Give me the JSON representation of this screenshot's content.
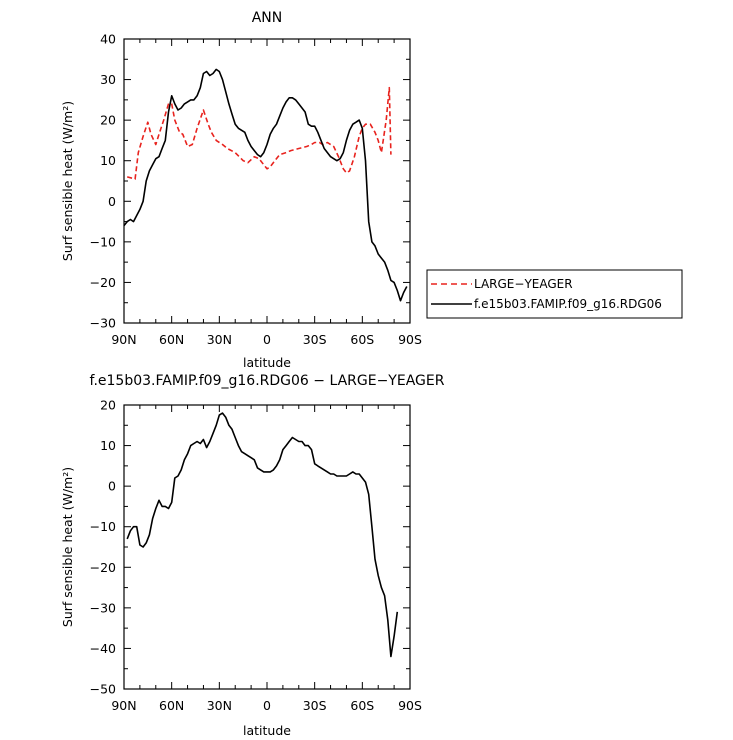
{
  "chart_data": [
    {
      "type": "line",
      "title": "ANN",
      "xlabel": "latitude",
      "ylabel": "Surf sensible heat (W/m²)",
      "xlim": [
        90,
        -90
      ],
      "ylim": [
        -30,
        40
      ],
      "x_ticks": [
        90,
        60,
        30,
        0,
        -30,
        -60,
        -90
      ],
      "x_tick_labels": [
        "90N",
        "60N",
        "30N",
        "0",
        "30S",
        "60S",
        "90S"
      ],
      "y_ticks": [
        -30,
        -20,
        -10,
        0,
        10,
        20,
        30,
        40
      ],
      "y_tick_labels": [
        "−30",
        "−20",
        "−10",
        "0",
        "10",
        "20",
        "30",
        "40"
      ],
      "legend_position": "right of plot, bottom",
      "series": [
        {
          "name": "LARGE−YEAGER",
          "color": "#e8231e",
          "dash": "dashed",
          "x": [
            88,
            83,
            81,
            78,
            75,
            73,
            70,
            68,
            65,
            62,
            60,
            58,
            55,
            53,
            50,
            47,
            44,
            40,
            37,
            35,
            32,
            28,
            25,
            20,
            15,
            12,
            8,
            5,
            2,
            0,
            -2,
            -5,
            -8,
            -12,
            -15,
            -20,
            -25,
            -28,
            -30,
            -33,
            -35,
            -38,
            -42,
            -45,
            -48,
            -50,
            -52,
            -55,
            -58,
            -60,
            -62,
            -65,
            -68,
            -70,
            -72,
            -75,
            -77,
            -78
          ],
          "y": [
            6,
            5.5,
            12,
            16,
            19.5,
            16.5,
            14,
            16.5,
            20,
            24,
            24,
            20,
            17,
            16.5,
            13.5,
            14,
            18,
            22.5,
            19,
            17,
            15,
            14,
            13,
            12,
            10,
            9.5,
            11,
            10.5,
            9,
            8,
            8.5,
            10,
            11.5,
            12,
            12.5,
            13,
            13.5,
            14,
            14.5,
            14.5,
            14,
            14.5,
            13.5,
            11,
            8,
            7,
            7.5,
            11,
            16,
            18,
            19,
            19,
            17,
            15,
            12,
            20,
            28,
            11.5
          ]
        },
        {
          "name": "f.e15b03.FAMIP.f09_g16.RDG06",
          "color": "#000000",
          "dash": "solid",
          "x": [
            90,
            88,
            86,
            84,
            82,
            80,
            78,
            76,
            74,
            72,
            70,
            68,
            66,
            64,
            62,
            60,
            58,
            56,
            54,
            52,
            50,
            48,
            46,
            44,
            42,
            40,
            38,
            36,
            34,
            32,
            30,
            28,
            26,
            24,
            22,
            20,
            18,
            16,
            14,
            12,
            10,
            8,
            6,
            4,
            2,
            0,
            -2,
            -4,
            -6,
            -8,
            -10,
            -12,
            -14,
            -16,
            -18,
            -20,
            -22,
            -24,
            -26,
            -28,
            -30,
            -32,
            -34,
            -36,
            -38,
            -40,
            -42,
            -44,
            -46,
            -48,
            -50,
            -52,
            -54,
            -56,
            -58,
            -60,
            -62,
            -64,
            -66,
            -68,
            -70,
            -72,
            -74,
            -76,
            -78,
            -80,
            -82,
            -84,
            -86,
            -88
          ],
          "y": [
            -6,
            -5,
            -4.5,
            -5,
            -3.5,
            -2,
            0,
            5,
            7.5,
            9,
            10.5,
            11,
            13,
            15,
            22,
            26,
            24,
            22.5,
            23,
            24,
            24.5,
            25,
            25,
            26,
            28,
            31.5,
            32,
            31,
            31.5,
            32.5,
            32,
            30,
            27,
            24,
            21.5,
            19,
            18,
            17.5,
            17,
            15,
            13.5,
            12.5,
            11.5,
            11,
            12,
            14,
            16.5,
            18,
            19,
            21,
            23,
            24.5,
            25.5,
            25.5,
            25,
            24,
            23,
            22,
            19,
            18.5,
            18.5,
            17,
            15,
            13,
            12,
            11,
            10.5,
            10,
            10.5,
            12,
            15,
            17.5,
            19,
            19.5,
            20,
            18,
            10,
            -5,
            -10,
            -11,
            -13,
            -14,
            -15,
            -17,
            -19.5,
            -20,
            -22,
            -24.5,
            -22.5,
            -21
          ]
        }
      ]
    },
    {
      "type": "line",
      "title": "f.e15b03.FAMIP.f09_g16.RDG06 − LARGE−YEAGER",
      "xlabel": "latitude",
      "ylabel": "Surf sensible heat (W/m²)",
      "xlim": [
        90,
        -90
      ],
      "ylim": [
        -50,
        20
      ],
      "x_ticks": [
        90,
        60,
        30,
        0,
        -30,
        -60,
        -90
      ],
      "x_tick_labels": [
        "90N",
        "60N",
        "30N",
        "0",
        "30S",
        "60S",
        "90S"
      ],
      "y_ticks": [
        -50,
        -40,
        -30,
        -20,
        -10,
        0,
        10,
        20
      ],
      "y_tick_labels": [
        "−50",
        "−40",
        "−30",
        "−20",
        "−10",
        "0",
        "10",
        "20"
      ],
      "series": [
        {
          "color": "#000000",
          "dash": "solid",
          "x": [
            88,
            86,
            84,
            82,
            80,
            78,
            76,
            74,
            72,
            70,
            68,
            66,
            64,
            62,
            60,
            58,
            56,
            54,
            52,
            50,
            48,
            46,
            44,
            42,
            40,
            38,
            36,
            34,
            32,
            30,
            28,
            26,
            24,
            22,
            20,
            18,
            16,
            14,
            12,
            10,
            8,
            6,
            4,
            2,
            0,
            -2,
            -4,
            -6,
            -8,
            -10,
            -12,
            -14,
            -16,
            -18,
            -20,
            -22,
            -24,
            -26,
            -28,
            -30,
            -32,
            -34,
            -36,
            -38,
            -40,
            -42,
            -44,
            -46,
            -48,
            -50,
            -52,
            -54,
            -56,
            -58,
            -60,
            -62,
            -64,
            -66,
            -68,
            -70,
            -72,
            -74,
            -76,
            -78,
            -80,
            -82
          ],
          "y": [
            -13,
            -11,
            -10,
            -10,
            -14.5,
            -15,
            -14,
            -12,
            -8,
            -5.5,
            -3.5,
            -5,
            -5,
            -5.5,
            -4,
            2,
            2.5,
            4,
            6.5,
            8,
            10,
            10.5,
            11,
            10.5,
            11.5,
            9.5,
            11,
            13,
            15,
            17.5,
            18,
            17,
            15,
            14,
            12,
            10,
            8.5,
            8,
            7.5,
            7,
            6.5,
            4.5,
            4,
            3.5,
            3.5,
            3.5,
            4,
            5,
            6.5,
            9,
            10,
            11,
            12,
            11.5,
            11,
            11,
            10,
            10,
            9,
            5.5,
            5,
            4.5,
            4,
            3.5,
            3,
            3,
            2.5,
            2.5,
            2.5,
            2.5,
            3,
            3.5,
            3,
            3,
            2,
            1,
            -2,
            -10,
            -18,
            -22,
            -25,
            -27,
            -33,
            -42,
            -37,
            -31
          ]
        }
      ]
    }
  ]
}
